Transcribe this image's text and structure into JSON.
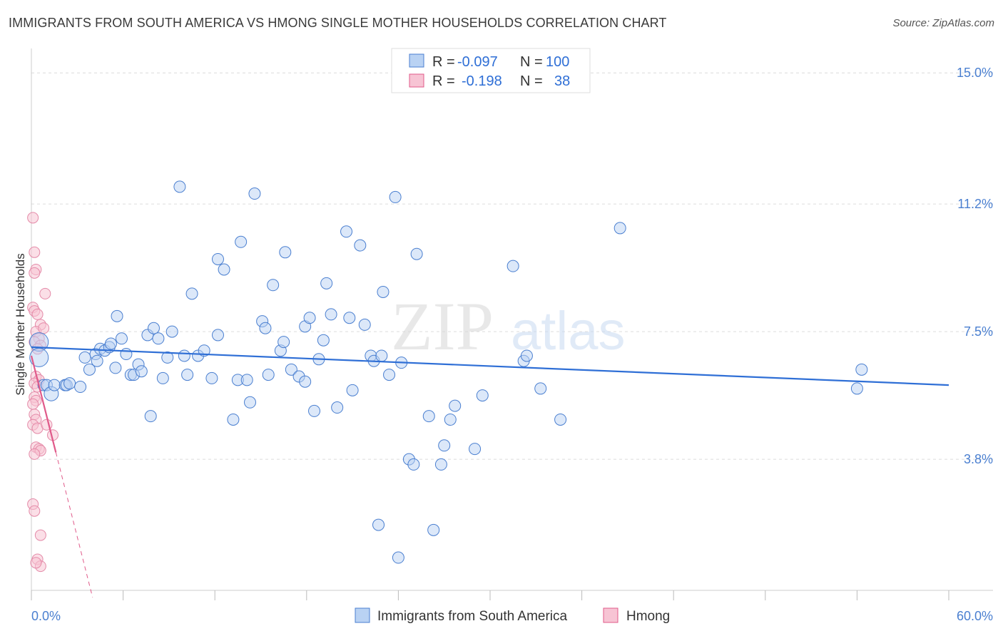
{
  "title": "IMMIGRANTS FROM SOUTH AMERICA VS HMONG SINGLE MOTHER HOUSEHOLDS CORRELATION CHART",
  "source": "Source: ZipAtlas.com",
  "watermark": {
    "zip": "ZIP",
    "atlas": "atlas"
  },
  "colors": {
    "blue": "#4a7fd0",
    "blue_fill": "#b9d2f3",
    "blue_line": "#2f6fd6",
    "pink": "#e05a8a",
    "pink_fill": "#f7c4d4",
    "grid": "#d8d8d8"
  },
  "legend": {
    "rows": [
      {
        "r_label": "R =",
        "r_value": "-0.097",
        "n_label": "N =",
        "n_value": "100",
        "color": "blue"
      },
      {
        "r_label": "R =",
        "r_value": "-0.198",
        "n_label": "N =",
        "n_value": "38",
        "color": "pink"
      }
    ]
  },
  "bottom_legend": [
    "Immigrants from South America",
    "Hmong"
  ],
  "chart_data": {
    "type": "scatter",
    "ylabel": "Single Mother Households",
    "xlabel": "",
    "xlim": [
      0,
      60
    ],
    "ylim": [
      0,
      15.5
    ],
    "x_tick_labels": [
      "0.0%",
      "60.0%"
    ],
    "y_ticks": [
      3.8,
      7.5,
      11.2,
      15.0
    ],
    "y_tick_labels": [
      "3.8%",
      "7.5%",
      "11.2%",
      "15.0%"
    ],
    "grid": true,
    "legend_position": "top-center",
    "series": [
      {
        "name": "Immigrants from South America",
        "color": "#4a7fd0",
        "trend": {
          "x": [
            0,
            60
          ],
          "y": [
            7.05,
            5.95
          ]
        },
        "points": [
          [
            0.5,
            7.2
          ],
          [
            0.5,
            6.75
          ],
          [
            0.8,
            5.95
          ],
          [
            1.0,
            5.95
          ],
          [
            1.3,
            5.7
          ],
          [
            1.5,
            5.95
          ],
          [
            2.2,
            5.95
          ],
          [
            2.3,
            5.95
          ],
          [
            2.5,
            6.0
          ],
          [
            3.2,
            5.9
          ],
          [
            3.5,
            6.75
          ],
          [
            3.8,
            6.4
          ],
          [
            4.2,
            6.85
          ],
          [
            4.3,
            6.65
          ],
          [
            4.5,
            7.0
          ],
          [
            4.8,
            6.95
          ],
          [
            5.1,
            7.05
          ],
          [
            5.2,
            7.15
          ],
          [
            5.5,
            6.45
          ],
          [
            5.6,
            7.95
          ],
          [
            5.9,
            7.3
          ],
          [
            6.2,
            6.85
          ],
          [
            6.5,
            6.25
          ],
          [
            6.7,
            6.25
          ],
          [
            7.0,
            6.55
          ],
          [
            7.2,
            6.35
          ],
          [
            7.6,
            7.4
          ],
          [
            7.8,
            5.05
          ],
          [
            8.0,
            7.6
          ],
          [
            8.3,
            7.3
          ],
          [
            8.6,
            6.15
          ],
          [
            8.9,
            6.75
          ],
          [
            9.2,
            7.5
          ],
          [
            9.7,
            11.7
          ],
          [
            10.0,
            6.8
          ],
          [
            10.2,
            6.25
          ],
          [
            10.5,
            8.6
          ],
          [
            10.9,
            6.8
          ],
          [
            11.3,
            6.95
          ],
          [
            11.8,
            6.15
          ],
          [
            12.2,
            7.4
          ],
          [
            12.2,
            9.6
          ],
          [
            12.6,
            9.3
          ],
          [
            13.2,
            4.95
          ],
          [
            13.5,
            6.1
          ],
          [
            13.7,
            10.1
          ],
          [
            14.1,
            6.1
          ],
          [
            14.3,
            5.45
          ],
          [
            14.6,
            11.5
          ],
          [
            15.1,
            7.8
          ],
          [
            15.3,
            7.6
          ],
          [
            15.5,
            6.25
          ],
          [
            15.8,
            8.85
          ],
          [
            16.3,
            6.95
          ],
          [
            16.5,
            7.2
          ],
          [
            16.6,
            9.8
          ],
          [
            17.0,
            6.4
          ],
          [
            17.5,
            6.2
          ],
          [
            17.9,
            7.65
          ],
          [
            17.9,
            6.05
          ],
          [
            18.2,
            7.9
          ],
          [
            18.5,
            5.2
          ],
          [
            18.8,
            6.7
          ],
          [
            19.1,
            7.25
          ],
          [
            19.3,
            8.9
          ],
          [
            19.6,
            8.0
          ],
          [
            20.0,
            5.3
          ],
          [
            20.6,
            10.4
          ],
          [
            20.8,
            7.9
          ],
          [
            21.0,
            5.8
          ],
          [
            21.5,
            10.0
          ],
          [
            21.8,
            7.7
          ],
          [
            22.2,
            6.8
          ],
          [
            22.4,
            6.65
          ],
          [
            22.7,
            1.9
          ],
          [
            22.9,
            6.8
          ],
          [
            23.0,
            8.65
          ],
          [
            23.4,
            6.25
          ],
          [
            23.8,
            11.4
          ],
          [
            24.0,
            0.95
          ],
          [
            24.2,
            6.6
          ],
          [
            24.7,
            3.8
          ],
          [
            25.0,
            3.65
          ],
          [
            25.2,
            9.75
          ],
          [
            26.0,
            5.05
          ],
          [
            26.3,
            1.75
          ],
          [
            26.8,
            3.65
          ],
          [
            27.0,
            4.2
          ],
          [
            27.4,
            4.95
          ],
          [
            27.7,
            5.35
          ],
          [
            29.0,
            4.1
          ],
          [
            29.5,
            5.65
          ],
          [
            31.5,
            9.4
          ],
          [
            32.2,
            6.65
          ],
          [
            32.4,
            6.8
          ],
          [
            33.3,
            5.85
          ],
          [
            34.6,
            4.95
          ],
          [
            38.5,
            10.5
          ],
          [
            54.3,
            6.4
          ],
          [
            54.0,
            5.85
          ]
        ]
      },
      {
        "name": "Hmong",
        "color": "#e05a8a",
        "trend": {
          "x": [
            0,
            1.6
          ],
          "y": [
            6.8,
            4.0
          ]
        },
        "trend_dashed": {
          "x": [
            1.6,
            4.0
          ],
          "y": [
            4.0,
            -0.2
          ]
        },
        "points": [
          [
            0.1,
            10.8
          ],
          [
            0.2,
            9.8
          ],
          [
            0.3,
            9.3
          ],
          [
            0.2,
            9.2
          ],
          [
            0.1,
            8.2
          ],
          [
            0.2,
            8.1
          ],
          [
            0.4,
            8.0
          ],
          [
            0.6,
            7.7
          ],
          [
            0.3,
            7.5
          ],
          [
            0.5,
            7.3
          ],
          [
            0.2,
            7.2
          ],
          [
            0.6,
            7.1
          ],
          [
            0.4,
            7.0
          ],
          [
            0.3,
            6.2
          ],
          [
            0.5,
            6.1
          ],
          [
            0.2,
            6.0
          ],
          [
            0.4,
            5.9
          ],
          [
            0.2,
            5.6
          ],
          [
            0.3,
            5.5
          ],
          [
            0.1,
            5.4
          ],
          [
            0.2,
            5.1
          ],
          [
            0.3,
            4.95
          ],
          [
            0.1,
            4.8
          ],
          [
            0.4,
            4.7
          ],
          [
            0.9,
            8.6
          ],
          [
            0.8,
            7.6
          ],
          [
            1.0,
            4.8
          ],
          [
            1.4,
            4.5
          ],
          [
            0.3,
            4.15
          ],
          [
            0.5,
            4.1
          ],
          [
            0.6,
            4.05
          ],
          [
            0.2,
            3.95
          ],
          [
            0.1,
            2.5
          ],
          [
            0.2,
            2.3
          ],
          [
            0.6,
            1.6
          ],
          [
            0.4,
            0.9
          ],
          [
            0.6,
            0.7
          ],
          [
            0.3,
            0.8
          ]
        ]
      }
    ]
  }
}
